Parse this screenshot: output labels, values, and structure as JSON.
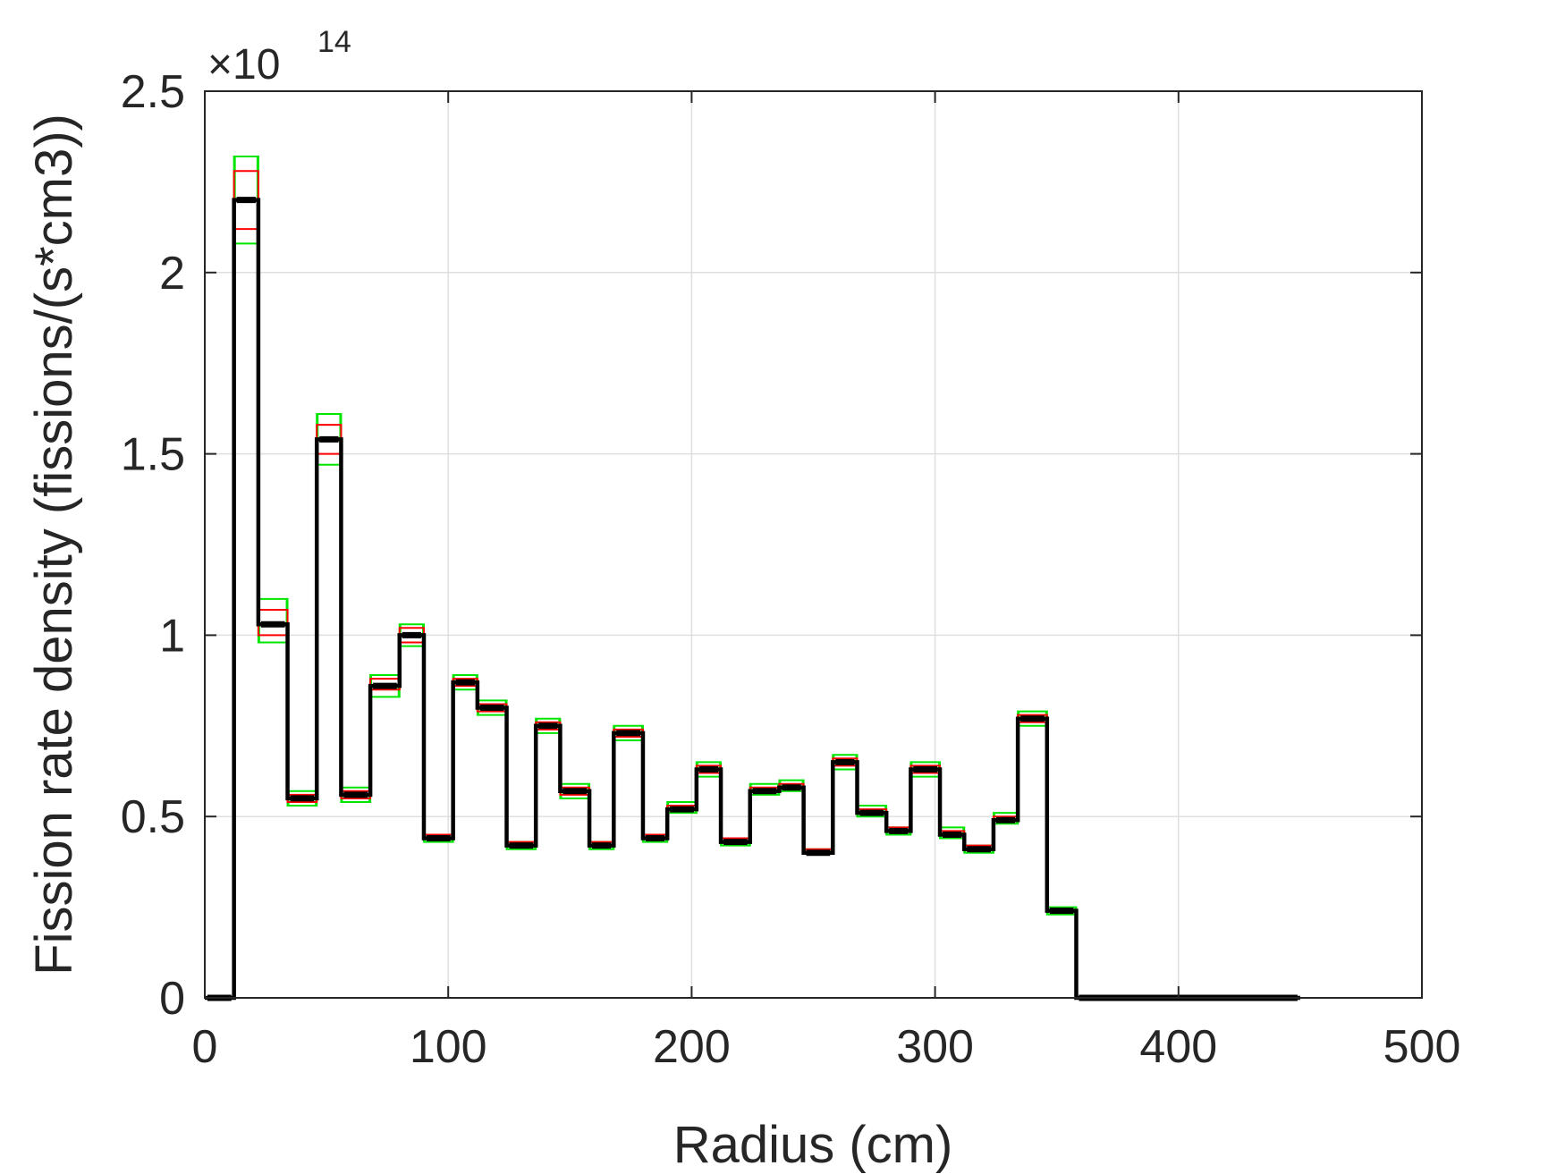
{
  "chart_data": {
    "type": "line",
    "xlabel": "Radius (cm)",
    "ylabel": "Fission rate density (fissions/(s*cm3))",
    "y_multiplier_base": "×10",
    "y_multiplier_exponent": "14",
    "xlim": [
      0,
      500
    ],
    "ylim": [
      0,
      2.5
    ],
    "xticks": [
      0,
      100,
      200,
      300,
      400,
      500
    ],
    "xtick_labels": [
      "0",
      "100",
      "200",
      "300",
      "400",
      "500"
    ],
    "yticks": [
      0,
      0.5,
      1,
      1.5,
      2,
      2.5
    ],
    "ytick_labels": [
      "0",
      "0.5",
      "1",
      "1.5",
      "2",
      "2.5"
    ],
    "grid": true,
    "step_edges": [
      0,
      12,
      22,
      34,
      46,
      56,
      68,
      80,
      90,
      102,
      112,
      124,
      136,
      146,
      158,
      168,
      180,
      190,
      202,
      212,
      224,
      236,
      246,
      258,
      268,
      280,
      290,
      302,
      312,
      324,
      334,
      346,
      358,
      450
    ],
    "series": [
      {
        "values": [
          0,
          2.2,
          1.03,
          0.55,
          1.54,
          0.56,
          0.86,
          1.0,
          0.44,
          0.87,
          0.8,
          0.42,
          0.75,
          0.57,
          0.42,
          0.73,
          0.44,
          0.52,
          0.63,
          0.43,
          0.57,
          0.58,
          0.4,
          0.65,
          0.51,
          0.46,
          0.63,
          0.45,
          0.41,
          0.49,
          0.77,
          0.24,
          0
        ],
        "color": "#000000"
      }
    ],
    "inner_band": {
      "low": [
        0,
        2.12,
        1.0,
        0.54,
        1.5,
        0.55,
        0.85,
        0.98,
        0.44,
        0.86,
        0.79,
        0.42,
        0.74,
        0.56,
        0.42,
        0.72,
        0.44,
        0.52,
        0.62,
        0.43,
        0.57,
        0.58,
        0.4,
        0.64,
        0.51,
        0.46,
        0.62,
        0.45,
        0.41,
        0.49,
        0.76,
        0.24,
        0
      ],
      "high": [
        0,
        2.28,
        1.07,
        0.56,
        1.58,
        0.57,
        0.88,
        1.02,
        0.45,
        0.88,
        0.81,
        0.43,
        0.76,
        0.58,
        0.43,
        0.74,
        0.45,
        0.53,
        0.64,
        0.44,
        0.58,
        0.59,
        0.41,
        0.66,
        0.52,
        0.47,
        0.64,
        0.46,
        0.42,
        0.5,
        0.78,
        0.24,
        0
      ],
      "color": "#ff0000"
    },
    "outer_band": {
      "low": [
        0,
        2.08,
        0.98,
        0.53,
        1.47,
        0.54,
        0.83,
        0.97,
        0.43,
        0.85,
        0.78,
        0.41,
        0.73,
        0.55,
        0.41,
        0.71,
        0.43,
        0.51,
        0.61,
        0.42,
        0.56,
        0.57,
        0.4,
        0.63,
        0.5,
        0.45,
        0.61,
        0.44,
        0.4,
        0.48,
        0.75,
        0.23,
        0
      ],
      "high": [
        0,
        2.32,
        1.1,
        0.57,
        1.61,
        0.58,
        0.89,
        1.03,
        0.45,
        0.89,
        0.82,
        0.43,
        0.77,
        0.59,
        0.43,
        0.75,
        0.45,
        0.54,
        0.65,
        0.44,
        0.59,
        0.6,
        0.41,
        0.67,
        0.53,
        0.47,
        0.65,
        0.47,
        0.42,
        0.51,
        0.79,
        0.25,
        0
      ],
      "color": "#00e600"
    }
  }
}
